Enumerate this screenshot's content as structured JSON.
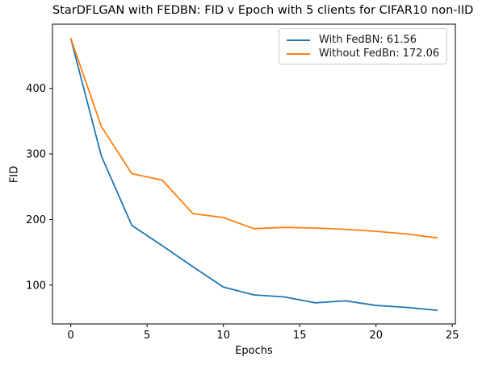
{
  "title": "StarDFLGAN with FEDBN: FID v Epoch with 5 clients for CIFAR10 non-IID",
  "axes": {
    "xlabel": "Epochs",
    "ylabel": "FID",
    "x_ticks": [
      0,
      5,
      10,
      15,
      20,
      25
    ],
    "y_ticks": [
      100,
      200,
      300,
      400
    ]
  },
  "legend": {
    "entries": [
      {
        "label": "With FedBN: 61.56",
        "color": "#1f77b4"
      },
      {
        "label": "Without FedBn: 172.06",
        "color": "#ff7f0e"
      }
    ]
  },
  "colors": {
    "with_fedbn": "#1f77b4",
    "without_fedbn": "#ff7f0e",
    "spine": "#000000",
    "background": "#ffffff"
  },
  "chart_data": {
    "type": "line",
    "title": "StarDFLGAN with FEDBN: FID v Epoch with 5 clients for CIFAR10 non-IID",
    "xlabel": "Epochs",
    "ylabel": "FID",
    "x": [
      0,
      2,
      4,
      6,
      8,
      10,
      12,
      14,
      16,
      18,
      20,
      22,
      24
    ],
    "series": [
      {
        "name": "With FedBN",
        "legend_label": "With FedBN: 61.56",
        "color": "#1f77b4",
        "final_value": 61.56,
        "values": [
          476,
          297,
          191,
          160,
          128,
          97,
          85,
          82,
          73,
          76,
          69,
          66,
          61.56
        ]
      },
      {
        "name": "Without FedBn",
        "legend_label": "Without FedBn: 172.06",
        "color": "#ff7f0e",
        "final_value": 172.06,
        "values": [
          476,
          342,
          270,
          260,
          209,
          203,
          186,
          188,
          187,
          185,
          182,
          178,
          172.06
        ]
      }
    ],
    "xlim": [
      -1.2,
      25.2
    ],
    "ylim": [
      40.8,
      497.9
    ],
    "x_ticks": [
      0,
      5,
      10,
      15,
      20,
      25
    ],
    "y_ticks": [
      100,
      200,
      300,
      400
    ],
    "grid": false,
    "legend_position": "upper right"
  }
}
